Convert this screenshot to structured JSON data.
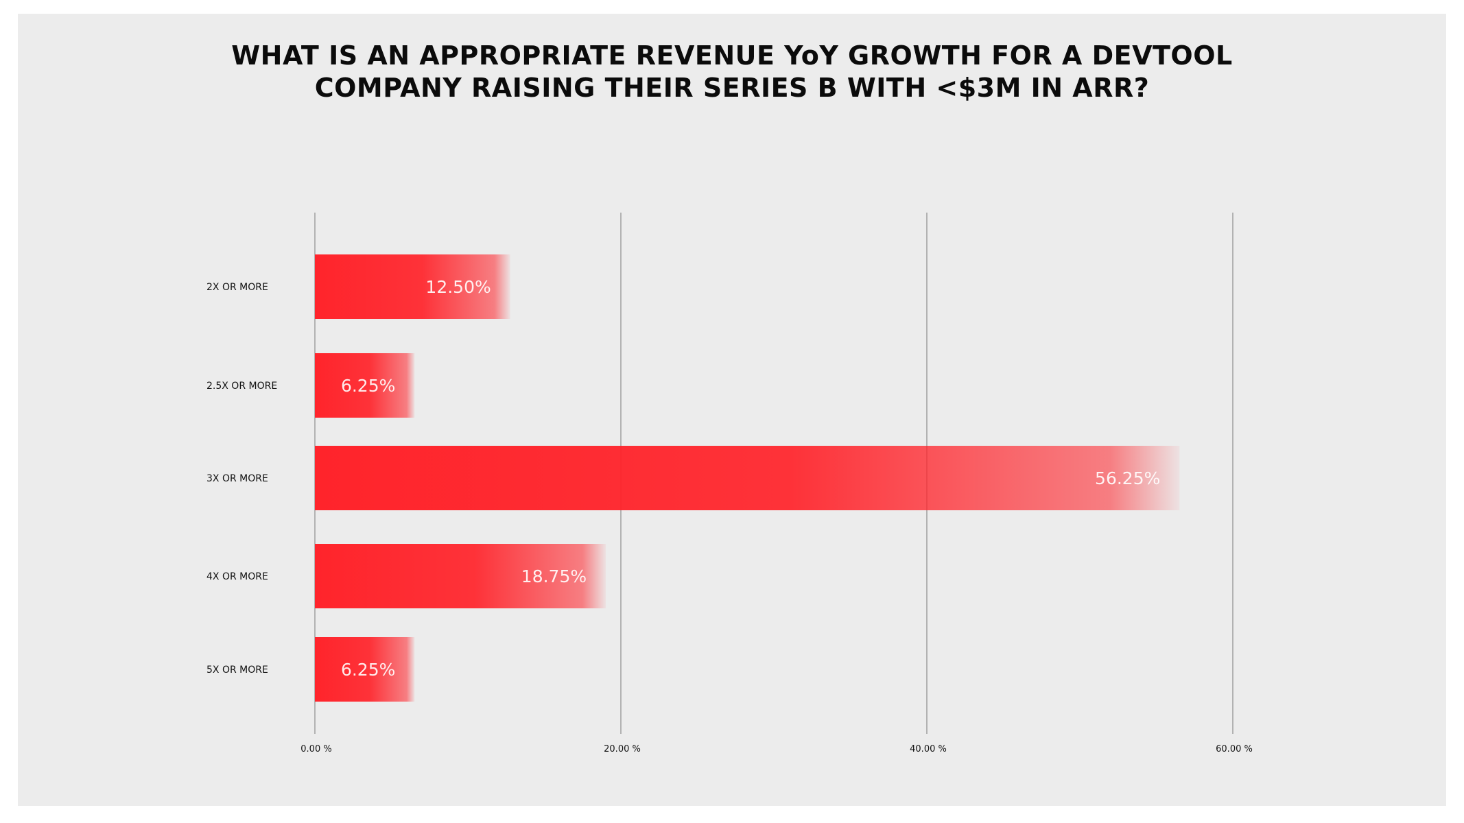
{
  "chart_data": {
    "type": "bar",
    "orientation": "horizontal",
    "title": "WHAT IS AN APPROPRIATE REVENUE YoY GROWTH FOR A DEVTOOL COMPANY RAISING THEIR SERIES B WITH <$3M IN ARR?",
    "title_lines": [
      "WHAT IS AN APPROPRIATE REVENUE YoY GROWTH FOR A DEVTOOL",
      "COMPANY RAISING THEIR SERIES B WITH <$3M IN ARR?"
    ],
    "categories": [
      "2X OR MORE",
      "2.5X OR MORE",
      "3X OR MORE",
      "4X OR MORE",
      "5X OR MORE"
    ],
    "values": [
      12.5,
      6.25,
      56.25,
      18.75,
      6.25
    ],
    "value_labels": [
      "12.50%",
      "6.25%",
      "56.25%",
      "18.75%",
      "6.25%"
    ],
    "xlim": [
      0,
      60
    ],
    "xticks": [
      0,
      20,
      40,
      60
    ],
    "xtick_labels": [
      "0.00 %",
      "20.00 %",
      "40.00 %",
      "60.00 %"
    ],
    "xlabel": "",
    "ylabel": "",
    "grid": true,
    "bar_color": "#ff242b",
    "grid_color": "#8c8c8c"
  }
}
